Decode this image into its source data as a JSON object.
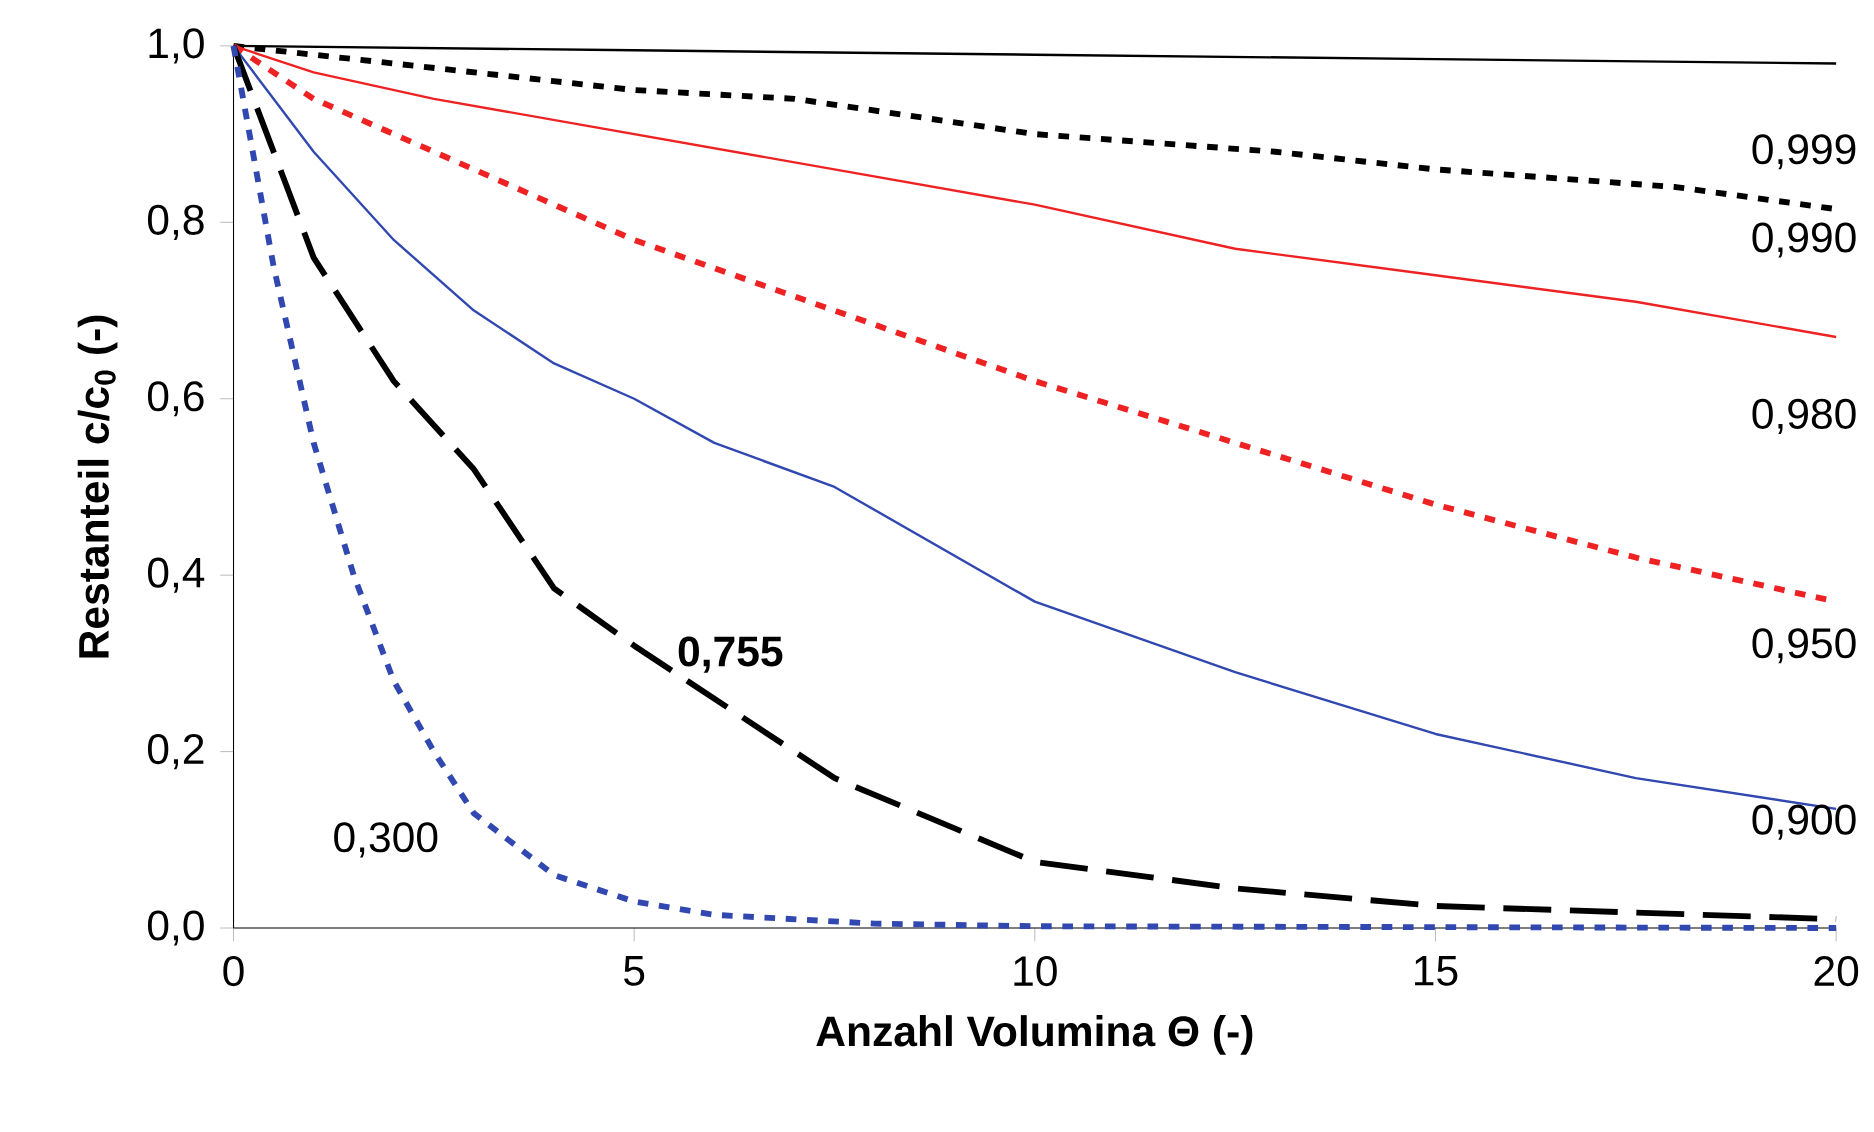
{
  "chart_data": {
    "type": "line",
    "xlabel": "Anzahl Volumina Θ (-)",
    "ylabel": "Restanteil c/c$_{0}$ (-)",
    "xlim": [
      0,
      20
    ],
    "ylim": [
      0,
      1
    ],
    "xticks": [
      0,
      5,
      10,
      15,
      20
    ],
    "yticks": [
      {
        "value": 0,
        "label": "0,0"
      },
      {
        "value": 0.2,
        "label": "0,2"
      },
      {
        "value": 0.4,
        "label": "0,4"
      },
      {
        "value": 0.6,
        "label": "0,6"
      },
      {
        "value": 0.8,
        "label": "0,8"
      },
      {
        "value": 1,
        "label": "1,0"
      }
    ],
    "grid": false,
    "series": [
      {
        "color": "#000000",
        "line_style": "solid",
        "x": [
          0,
          5,
          10,
          15,
          20
        ],
        "values": [
          1,
          0.995,
          0.99,
          0.985,
          0.98
        ]
      },
      {
        "color": "#000000",
        "line_style": "dotted",
        "x": [
          0,
          2,
          5,
          7,
          10,
          13,
          15,
          18,
          20
        ],
        "values": [
          1,
          0.98,
          0.95,
          0.94,
          0.9,
          0.88,
          0.86,
          0.84,
          0.815
        ]
      },
      {
        "color": "#ee2222",
        "line_style": "solid",
        "x": [
          0,
          1,
          2.5,
          5,
          7.5,
          10,
          12.5,
          15,
          17.5,
          20
        ],
        "values": [
          1,
          0.97,
          0.94,
          0.9,
          0.86,
          0.82,
          0.77,
          0.74,
          0.71,
          0.67
        ]
      },
      {
        "color": "#ee2222",
        "line_style": "dotted",
        "x": [
          0,
          1,
          2.5,
          5,
          7.5,
          10,
          12.5,
          15,
          17.5,
          20
        ],
        "values": [
          1,
          0.94,
          0.88,
          0.78,
          0.7,
          0.62,
          0.55,
          0.48,
          0.42,
          0.37
        ]
      },
      {
        "color": "#3048b0",
        "line_style": "solid",
        "x": [
          0,
          1,
          2,
          3,
          4,
          5,
          6,
          7.5,
          10,
          12.5,
          15,
          17.5,
          20
        ],
        "values": [
          1,
          0.88,
          0.78,
          0.7,
          0.64,
          0.6,
          0.55,
          0.5,
          0.37,
          0.29,
          0.22,
          0.17,
          0.135
        ]
      },
      {
        "color": "#000000",
        "line_style": "dashed",
        "x": [
          0,
          1,
          2,
          3,
          4,
          5,
          7.5,
          10,
          12.5,
          15,
          20
        ],
        "values": [
          1,
          0.76,
          0.62,
          0.52,
          0.385,
          0.32,
          0.17,
          0.075,
          0.045,
          0.025,
          0.01
        ]
      },
      {
        "color": "#3048b0",
        "line_style": "dotted",
        "x": [
          0,
          0.5,
          1,
          1.5,
          2,
          2.5,
          3,
          4,
          5,
          6,
          8,
          10,
          20
        ],
        "values": [
          1,
          0.75,
          0.55,
          0.4,
          0.28,
          0.2,
          0.13,
          0.06,
          0.03,
          0.015,
          0.005,
          0.002,
          0
        ]
      }
    ],
    "annotations": [
      "0,999",
      "0,990",
      "0,980",
      "0,950",
      "0,900",
      "**0,755**",
      "0,300"
    ]
  }
}
